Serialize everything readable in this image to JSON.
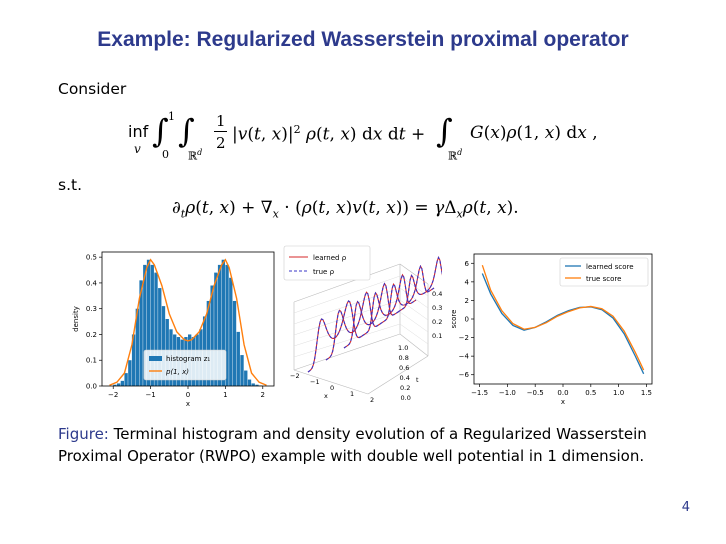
{
  "slide": {
    "title": "Example: Regularized Wasserstein proximal operator",
    "consider": "Consider",
    "st": "s.t.",
    "page": "4"
  },
  "caption": {
    "label": "Figure:",
    "text": "Terminal histogram and density evolution of a Regularized Wasserstein Proximal Operator (RWPO) example with double well potential in 1 dimension."
  },
  "chart_data": [
    {
      "type": "bar",
      "xlabel": "x",
      "ylabel": "density",
      "xlim": [
        -2.3,
        2.3
      ],
      "ylim": [
        0,
        0.52
      ],
      "xticks": [
        -2,
        -1,
        0,
        1,
        2
      ],
      "yticks": [
        0.0,
        0.1,
        0.2,
        0.3,
        0.4,
        0.5
      ],
      "legend": "bottom-center",
      "series": [
        {
          "name": "histogram z_1",
          "color": "#1f77b4",
          "kind": "histogram"
        },
        {
          "name": "p(1, x)",
          "color": "#ff7f0e",
          "kind": "line"
        }
      ],
      "bin_centers": [
        -1.95,
        -1.85,
        -1.75,
        -1.65,
        -1.55,
        -1.45,
        -1.35,
        -1.25,
        -1.15,
        -1.05,
        -0.95,
        -0.85,
        -0.75,
        -0.65,
        -0.55,
        -0.45,
        -0.35,
        -0.25,
        -0.15,
        -0.05,
        0.05,
        0.15,
        0.25,
        0.35,
        0.45,
        0.55,
        0.65,
        0.75,
        0.85,
        0.95,
        1.05,
        1.15,
        1.25,
        1.35,
        1.45,
        1.55,
        1.65,
        1.75,
        1.85,
        1.95
      ],
      "hist_values": [
        0.005,
        0.01,
        0.02,
        0.05,
        0.1,
        0.2,
        0.3,
        0.41,
        0.47,
        0.49,
        0.47,
        0.44,
        0.38,
        0.31,
        0.26,
        0.22,
        0.2,
        0.19,
        0.18,
        0.19,
        0.2,
        0.19,
        0.2,
        0.22,
        0.27,
        0.33,
        0.39,
        0.44,
        0.47,
        0.49,
        0.47,
        0.42,
        0.33,
        0.21,
        0.12,
        0.06,
        0.025,
        0.01,
        0.005,
        0.002
      ],
      "curve_x": [
        -2.1,
        -1.9,
        -1.7,
        -1.5,
        -1.3,
        -1.1,
        -1.0,
        -0.9,
        -0.7,
        -0.5,
        -0.3,
        -0.1,
        0.0,
        0.1,
        0.3,
        0.5,
        0.7,
        0.9,
        1.0,
        1.1,
        1.3,
        1.5,
        1.7,
        1.9,
        2.1
      ],
      "curve_y": [
        0.003,
        0.015,
        0.05,
        0.16,
        0.34,
        0.46,
        0.49,
        0.47,
        0.39,
        0.28,
        0.21,
        0.18,
        0.175,
        0.18,
        0.21,
        0.28,
        0.39,
        0.47,
        0.49,
        0.46,
        0.34,
        0.16,
        0.05,
        0.015,
        0.003
      ]
    },
    {
      "type": "line",
      "note": "3D density evolution over t",
      "xlabel": "x",
      "ylabel": "t",
      "zticks": [
        0.1,
        0.2,
        0.3,
        0.4
      ],
      "yticks": [
        0.0,
        0.2,
        0.4,
        0.6,
        0.8,
        1.0
      ],
      "xticks": [
        -2,
        -1,
        0,
        1,
        2
      ],
      "legend": "top-left",
      "series": [
        {
          "name": "learned ρ",
          "color": "#d62728",
          "style": "solid"
        },
        {
          "name": "true ρ",
          "color": "#3a34c7",
          "style": "dashed"
        }
      ],
      "t_slices": [
        0.0,
        0.2,
        0.4,
        0.6,
        0.8,
        1.0
      ]
    },
    {
      "type": "line",
      "xlabel": "x",
      "ylabel": "score",
      "xlim": [
        -1.6,
        1.6
      ],
      "ylim": [
        -7,
        7
      ],
      "xticks": [
        -1.5,
        -1.0,
        -0.5,
        0.0,
        0.5,
        1.0,
        1.5
      ],
      "yticks": [
        -6,
        -4,
        -2,
        0,
        2,
        4,
        6
      ],
      "legend": "top-right",
      "series": [
        {
          "name": "learned score",
          "color": "#1f77b4",
          "x": [
            -1.45,
            -1.3,
            -1.1,
            -0.9,
            -0.7,
            -0.5,
            -0.3,
            -0.1,
            0.1,
            0.3,
            0.5,
            0.7,
            0.9,
            1.1,
            1.3,
            1.45
          ],
          "y": [
            4.9,
            2.7,
            0.6,
            -0.7,
            -1.2,
            -0.9,
            -0.3,
            0.4,
            0.9,
            1.25,
            1.3,
            1.0,
            0.1,
            -1.6,
            -4.0,
            -5.9
          ]
        },
        {
          "name": "true score",
          "color": "#ff7f0e",
          "x": [
            -1.45,
            -1.3,
            -1.1,
            -0.9,
            -0.7,
            -0.5,
            -0.3,
            -0.1,
            0.1,
            0.3,
            0.5,
            0.7,
            0.9,
            1.1,
            1.3,
            1.45
          ],
          "y": [
            5.8,
            3.1,
            0.9,
            -0.5,
            -1.1,
            -0.9,
            -0.4,
            0.3,
            0.8,
            1.2,
            1.35,
            1.1,
            0.3,
            -1.3,
            -3.6,
            -5.5
          ]
        }
      ]
    }
  ]
}
